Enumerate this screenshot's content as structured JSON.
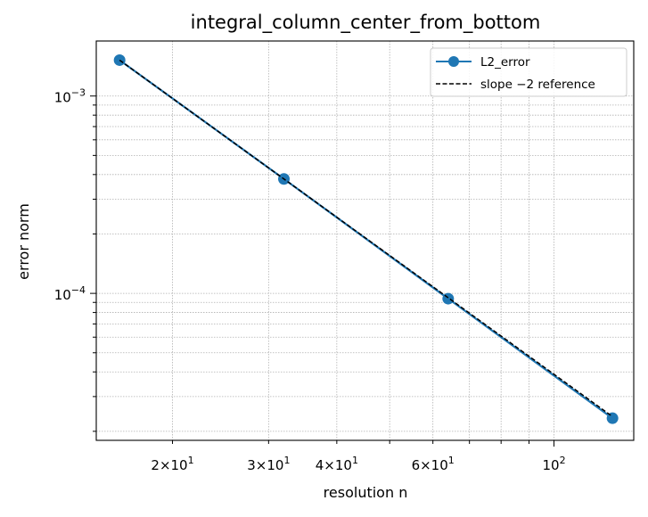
{
  "chart_data": {
    "type": "line",
    "title": "integral_column_center_from_bottom",
    "xlabel": "resolution n",
    "ylabel": "error norm",
    "xscale": "log",
    "yscale": "log",
    "xlim": [
      14.5,
      140
    ],
    "ylim": [
      1.8e-05,
      0.0019
    ],
    "grid": "both-major-and-minor-dotted",
    "legend_position": "top-right",
    "series": [
      {
        "name": "L2_error",
        "style": "solid-line-with-circle-markers",
        "color": "#1f77b4",
        "x": [
          16,
          32,
          64,
          128
        ],
        "y": [
          0.00152,
          0.00038,
          9.4e-05,
          2.33e-05
        ]
      },
      {
        "name": "slope −2 reference",
        "style": "dashed-line",
        "color": "#000000",
        "x": [
          16,
          32,
          64,
          128
        ],
        "y": [
          0.00152,
          0.00038,
          9.5e-05,
          2.375e-05
        ]
      }
    ],
    "x_tick_labels": [
      {
        "value": 20,
        "base": "2×10",
        "exp": "1"
      },
      {
        "value": 30,
        "base": "3×10",
        "exp": "1"
      },
      {
        "value": 40,
        "base": "4×10",
        "exp": "1"
      },
      {
        "value": 60,
        "base": "6×10",
        "exp": "1"
      },
      {
        "value": 100,
        "base": "10",
        "exp": "2"
      }
    ],
    "y_tick_labels": [
      {
        "value": 0.001,
        "base": "10",
        "exp": "−3"
      },
      {
        "value": 0.0001,
        "base": "10",
        "exp": "−4"
      }
    ]
  }
}
